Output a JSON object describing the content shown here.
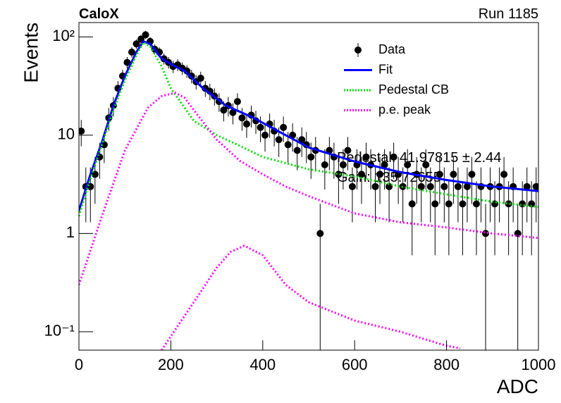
{
  "chart_data": {
    "type": "scatter",
    "title": "CaloX",
    "subtitle": "Run 1185",
    "x_label": "ADC",
    "y_label": "Events",
    "log_y": true,
    "legend": "upper right",
    "annotations": [
      "Pedestal: 41.97815 ± 2.44",
      "Gain: 135.72655"
    ],
    "xlim": [
      0,
      1000
    ],
    "xticks": [
      0,
      200,
      400,
      600,
      800,
      1000
    ],
    "ylim": [
      0.065,
      140
    ],
    "yticks": [
      {
        "value": 0.1,
        "label": "10⁻¹"
      },
      1,
      10,
      {
        "value": 100,
        "label": "10²"
      }
    ],
    "series": [
      {
        "name": "Data",
        "color": "#000000",
        "style": "points",
        "x": [
          5,
          15,
          25,
          35,
          45,
          55,
          65,
          75,
          85,
          95,
          105,
          115,
          125,
          135,
          145,
          155,
          165,
          175,
          185,
          195,
          205,
          215,
          225,
          235,
          245,
          255,
          265,
          275,
          285,
          295,
          305,
          315,
          325,
          335,
          345,
          355,
          365,
          375,
          385,
          395,
          405,
          415,
          425,
          435,
          445,
          455,
          465,
          475,
          485,
          495,
          505,
          515,
          525,
          535,
          545,
          555,
          565,
          575,
          585,
          595,
          605,
          615,
          625,
          635,
          645,
          655,
          665,
          675,
          685,
          695,
          705,
          715,
          725,
          735,
          745,
          755,
          765,
          775,
          785,
          795,
          805,
          815,
          825,
          835,
          845,
          855,
          865,
          875,
          885,
          895,
          905,
          915,
          925,
          935,
          945,
          955,
          965,
          975,
          985,
          995
        ],
        "values": [
          11,
          3,
          3,
          4,
          6,
          8,
          15,
          20,
          30,
          40,
          55,
          70,
          85,
          95,
          105,
          90,
          75,
          70,
          60,
          55,
          50,
          52,
          48,
          45,
          40,
          35,
          38,
          30,
          28,
          25,
          22,
          18,
          20,
          17,
          22,
          15,
          13,
          16,
          14,
          12,
          10,
          13,
          11,
          9,
          12,
          8,
          10,
          7,
          9,
          8,
          6,
          7,
          1,
          5,
          7,
          6,
          4,
          5,
          7,
          3,
          5,
          4,
          6,
          5,
          3,
          4,
          5,
          3,
          6,
          4,
          3,
          5,
          2,
          4,
          3,
          5,
          3,
          2,
          4,
          3,
          2,
          4,
          3,
          2,
          3,
          4,
          2,
          3,
          1,
          3,
          2,
          3,
          4,
          2,
          3,
          1,
          2,
          3,
          2,
          3
        ],
        "errors": [
          3.3,
          1.7,
          1.7,
          2,
          2.4,
          2.8,
          3.9,
          4.5,
          5.5,
          6.3,
          7.4,
          8.4,
          9.2,
          9.7,
          10.2,
          9.5,
          8.7,
          8.4,
          7.7,
          7.4,
          7.1,
          7.2,
          6.9,
          6.7,
          6.3,
          5.9,
          6.2,
          5.5,
          5.3,
          5,
          4.7,
          4.2,
          4.5,
          4.1,
          4.7,
          3.9,
          3.6,
          4,
          3.7,
          3.5,
          3.2,
          3.6,
          3.3,
          3,
          3.5,
          2.8,
          3.2,
          2.6,
          3,
          2.8,
          2.4,
          2.6,
          1,
          2.2,
          2.6,
          2.4,
          2,
          2.2,
          2.6,
          1.7,
          2.2,
          2,
          2.4,
          2.2,
          1.7,
          2,
          2.2,
          1.7,
          2.4,
          2,
          1.7,
          2.2,
          1.4,
          2,
          1.7,
          2.2,
          1.7,
          1.4,
          2,
          1.7,
          1.4,
          2,
          1.7,
          1.4,
          1.7,
          2,
          1.4,
          1.7,
          1,
          1.7,
          1.4,
          1.7,
          2,
          1.4,
          1.7,
          1,
          1.4,
          1.7,
          1.4,
          1.7
        ]
      },
      {
        "name": "Fit",
        "color": "#0000ff",
        "style": "solid",
        "x": [
          0,
          25,
          50,
          75,
          100,
          125,
          140,
          155,
          180,
          210,
          230,
          270,
          320,
          380,
          450,
          500,
          600,
          700,
          800,
          900,
          1000
        ],
        "values": [
          1.7,
          4,
          8.5,
          20,
          40,
          70,
          90,
          85,
          60,
          50,
          45,
          30,
          20,
          15,
          10,
          7.5,
          5.4,
          4.2,
          3.5,
          3,
          2.7
        ]
      },
      {
        "name": "Pedestal CB",
        "color": "#00dd00",
        "style": "dotted",
        "x": [
          0,
          25,
          50,
          75,
          100,
          125,
          140,
          155,
          180,
          200,
          250,
          300,
          350,
          400,
          500,
          600,
          700,
          800,
          900,
          1000
        ],
        "values": [
          1.5,
          3.6,
          8,
          18,
          36,
          65,
          88,
          80,
          50,
          30,
          14,
          10,
          7.8,
          6,
          4.5,
          3.8,
          3,
          2.5,
          2.1,
          1.86
        ]
      },
      {
        "name": "p.e. peak",
        "color": "#ff00ff",
        "style": "dotted",
        "x": [
          0,
          50,
          100,
          150,
          180,
          210,
          230,
          250,
          300,
          350,
          400,
          450,
          500,
          600,
          700,
          800,
          900,
          1000
        ],
        "values": [
          0.3,
          1.5,
          7,
          19,
          25,
          27,
          24,
          18,
          9,
          5.5,
          4,
          3,
          2.4,
          1.6,
          1.3,
          1.15,
          1,
          0.9
        ]
      },
      {
        "color": "#ff00ff",
        "style": "dotted",
        "x": [
          180,
          200,
          250,
          300,
          330,
          360,
          400,
          450,
          500,
          600,
          700,
          800,
          830
        ],
        "values": [
          0.065,
          0.09,
          0.2,
          0.45,
          0.65,
          0.75,
          0.6,
          0.3,
          0.2,
          0.13,
          0.1,
          0.072,
          0.068
        ]
      }
    ]
  }
}
